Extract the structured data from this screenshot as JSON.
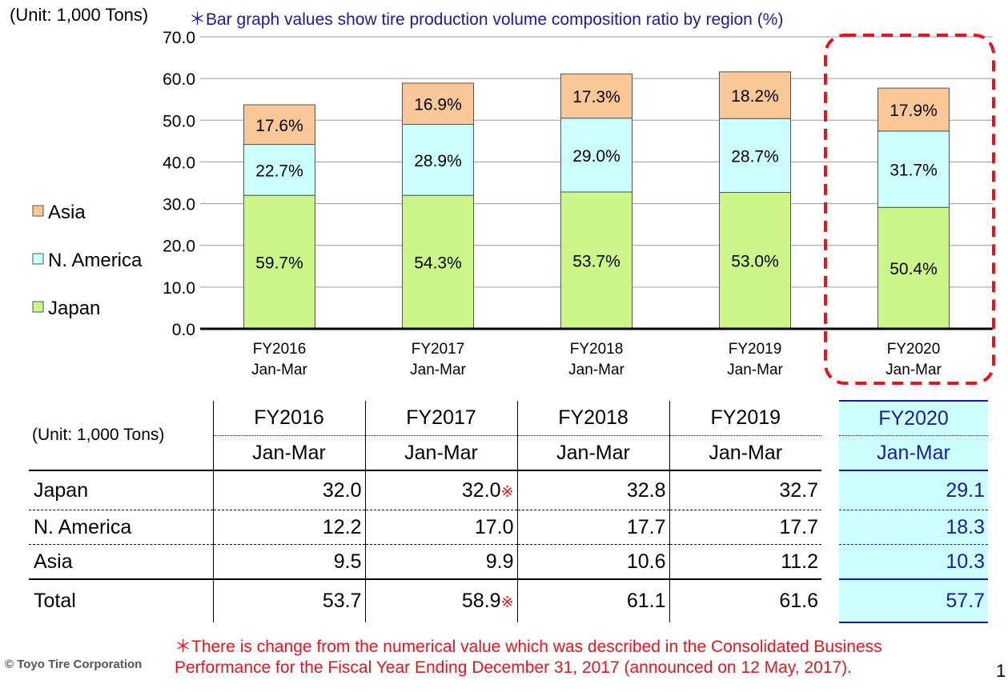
{
  "header": {
    "unit": "(Unit: 1,000 Tons)",
    "note": "＊Bar graph values show tire production volume composition ratio by region (%)"
  },
  "legend": [
    "Asia",
    "N. America",
    "Japan"
  ],
  "colors": {
    "japan": "#ccf58a",
    "namerica": "#ccffff",
    "asia": "#fac898",
    "highlight": "#e8131b",
    "table_highlight": "#ccffff",
    "table_highlight_text": "#1a1aa8"
  },
  "chart_data": {
    "type": "bar",
    "stacked": true,
    "categories": [
      [
        "FY2016",
        "Jan-Mar"
      ],
      [
        "FY2017",
        "Jan-Mar"
      ],
      [
        "FY2018",
        "Jan-Mar"
      ],
      [
        "FY2019",
        "Jan-Mar"
      ],
      [
        "FY2020",
        "Jan-Mar"
      ]
    ],
    "series": [
      {
        "name": "Japan",
        "values": [
          32.0,
          32.0,
          32.8,
          32.7,
          29.1
        ],
        "labels": [
          "59.7%",
          "54.3%",
          "53.7%",
          "53.0%",
          "50.4%"
        ]
      },
      {
        "name": "N. America",
        "values": [
          12.2,
          17.0,
          17.7,
          17.7,
          18.3
        ],
        "labels": [
          "22.7%",
          "28.9%",
          "29.0%",
          "28.7%",
          "31.7%"
        ]
      },
      {
        "name": "Asia",
        "values": [
          9.5,
          9.9,
          10.6,
          11.2,
          10.3
        ],
        "labels": [
          "17.6%",
          "16.9%",
          "17.3%",
          "18.2%",
          "17.9%"
        ]
      }
    ],
    "yticks": [
      "0.0",
      "10.0",
      "20.0",
      "30.0",
      "40.0",
      "50.0",
      "60.0",
      "70.0"
    ],
    "ylim": [
      0,
      70
    ],
    "grid": true,
    "highlight_category": 4
  },
  "table": {
    "unit": "(Unit: 1,000 Tons)",
    "years": [
      "FY2016",
      "FY2017",
      "FY2018",
      "FY2019",
      "FY2020"
    ],
    "period": "Jan-Mar",
    "rows": [
      {
        "label": "Japan",
        "values": [
          "32.0",
          "32.0",
          "32.8",
          "32.7",
          "29.1"
        ],
        "marks": [
          "",
          "※",
          "",
          "",
          ""
        ]
      },
      {
        "label": "N. America",
        "values": [
          "12.2",
          "17.0",
          "17.7",
          "17.7",
          "18.3"
        ],
        "marks": [
          "",
          "",
          "",
          "",
          ""
        ]
      },
      {
        "label": "Asia",
        "values": [
          "9.5",
          "9.9",
          "10.6",
          "11.2",
          "10.3"
        ],
        "marks": [
          "",
          "",
          "",
          "",
          ""
        ]
      },
      {
        "label": "Total",
        "values": [
          "53.7",
          "58.9",
          "61.1",
          "61.6",
          "57.7"
        ],
        "marks": [
          "",
          "※",
          "",
          "",
          ""
        ]
      }
    ]
  },
  "footnote": {
    "line1": "＊There is change from the numerical value which was described in the Consolidated Business",
    "line2": "Performance for the Fiscal Year Ending December 31, 2017 (announced on 12 May, 2017)."
  },
  "footer": {
    "copyright": "© Toyo Tire Corporation",
    "page": "1"
  }
}
